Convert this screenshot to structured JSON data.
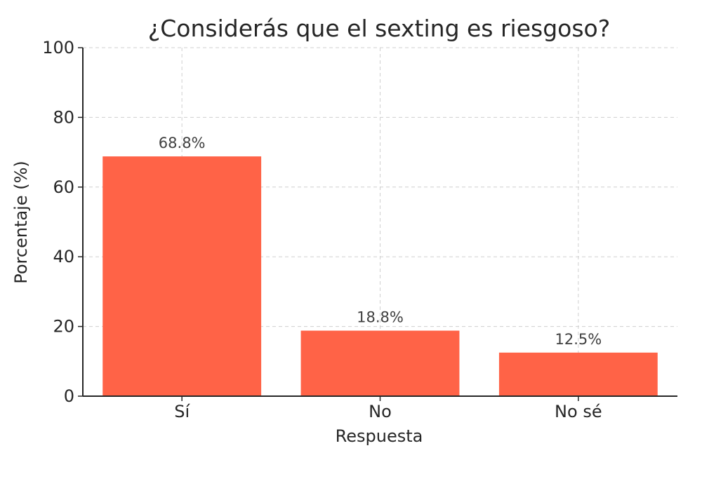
{
  "chart_data": {
    "type": "bar",
    "title": "¿Considerás que el sexting es riesgoso?",
    "xlabel": "Respuesta",
    "ylabel": "Porcentaje (%)",
    "categories": [
      "Sí",
      "No",
      "No sé"
    ],
    "values": [
      68.8,
      18.8,
      12.5
    ],
    "data_labels": [
      "68.8%",
      "18.8%",
      "12.5%"
    ],
    "ylim": [
      0,
      100
    ],
    "yticks": [
      0,
      20,
      40,
      60,
      80,
      100
    ],
    "grid": true,
    "bar_color": "#ff6347"
  }
}
